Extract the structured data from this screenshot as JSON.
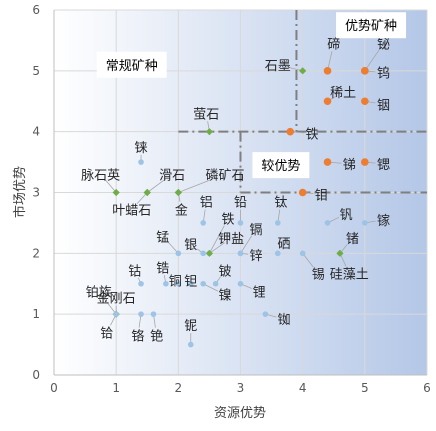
{
  "chart_data": {
    "type": "scatter",
    "xlabel": "资源优势",
    "ylabel": "市场优势",
    "xlim": [
      0,
      6
    ],
    "ylim": [
      0,
      6
    ],
    "xticks": [
      0,
      1,
      2,
      3,
      4,
      5,
      6
    ],
    "yticks": [
      0,
      1,
      2,
      3,
      4,
      5,
      6
    ],
    "colors": {
      "blue": "#9dc3e6",
      "orange": "#ed7d31",
      "green": "#70ad47",
      "gradient_light": "#ffffff",
      "gradient_dark": "#b4c7e7",
      "dash": "#7f7f7f"
    },
    "regions": [
      {
        "label": "优势矿种",
        "x": 5.1,
        "y": 5.75
      },
      {
        "label": "常规矿种",
        "x": 1.25,
        "y": 5.1
      },
      {
        "label": "较优势",
        "x": 3.65,
        "y": 3.45
      }
    ],
    "divider_lines": [
      {
        "points": [
          [
            3.9,
            6
          ],
          [
            3.9,
            4
          ]
        ]
      },
      {
        "points": [
          [
            2.0,
            4
          ],
          [
            3.9,
            4
          ]
        ]
      },
      {
        "points": [
          [
            3.0,
            4
          ],
          [
            3.0,
            3
          ]
        ]
      },
      {
        "points": [
          [
            3.0,
            3
          ],
          [
            6,
            3
          ]
        ]
      },
      {
        "points": [
          [
            3.9,
            4
          ],
          [
            6,
            4
          ]
        ]
      }
    ],
    "points": [
      {
        "label": "铋",
        "x": 5.0,
        "y": 5.0,
        "color": "orange",
        "lx": 5.3,
        "ly": 5.45
      },
      {
        "label": "碲",
        "x": 4.4,
        "y": 5.0,
        "color": "orange",
        "lx": 4.5,
        "ly": 5.45
      },
      {
        "label": "钨",
        "x": 5.0,
        "y": 5.0,
        "color": "orange",
        "lx": 5.3,
        "ly": 4.97
      },
      {
        "label": "石墨",
        "x": 4.0,
        "y": 5.0,
        "color": "green",
        "lx": 3.6,
        "ly": 5.1
      },
      {
        "label": "稀土",
        "x": 4.4,
        "y": 4.5,
        "color": "orange",
        "lx": 4.65,
        "ly": 4.65
      },
      {
        "label": "铟",
        "x": 5.0,
        "y": 4.5,
        "color": "orange",
        "lx": 5.3,
        "ly": 4.45
      },
      {
        "label": "铁",
        "x": 3.8,
        "y": 4.0,
        "color": "orange",
        "lx": 4.15,
        "ly": 3.97
      },
      {
        "label": "萤石",
        "x": 2.5,
        "y": 4.0,
        "color": "green",
        "lx": 2.45,
        "ly": 4.3
      },
      {
        "label": "锑",
        "x": 4.4,
        "y": 3.5,
        "color": "orange",
        "lx": 4.75,
        "ly": 3.47
      },
      {
        "label": "锶",
        "x": 5.0,
        "y": 3.5,
        "color": "orange",
        "lx": 5.3,
        "ly": 3.47
      },
      {
        "label": "钼",
        "x": 4.0,
        "y": 3.0,
        "color": "orange",
        "lx": 4.3,
        "ly": 2.97
      },
      {
        "label": "铼",
        "x": 1.4,
        "y": 3.5,
        "color": "blue",
        "lx": 1.4,
        "ly": 3.75
      },
      {
        "label": "脉石英",
        "x": 1.0,
        "y": 3.0,
        "color": "green",
        "lx": 0.75,
        "ly": 3.3
      },
      {
        "label": "滑石",
        "x": 1.5,
        "y": 3.0,
        "color": "green",
        "lx": 1.9,
        "ly": 3.3
      },
      {
        "label": "磷矿石",
        "x": 2.0,
        "y": 3.0,
        "color": "green",
        "lx": 2.75,
        "ly": 3.3
      },
      {
        "label": "叶蜡石",
        "x": 1.5,
        "y": 3.0,
        "color": "green",
        "lx": 1.25,
        "ly": 2.72
      },
      {
        "label": "金",
        "x": 2.0,
        "y": 3.0,
        "color": "green",
        "lx": 2.05,
        "ly": 2.72
      },
      {
        "label": "铝",
        "x": 2.4,
        "y": 2.5,
        "color": "blue",
        "lx": 2.45,
        "ly": 2.85
      },
      {
        "label": "铅",
        "x": 3.0,
        "y": 2.5,
        "color": "blue",
        "lx": 3.0,
        "ly": 2.85
      },
      {
        "label": "钛",
        "x": 3.6,
        "y": 2.5,
        "color": "blue",
        "lx": 3.65,
        "ly": 2.85
      },
      {
        "label": "铁",
        "x": 2.5,
        "y": 2.0,
        "color": "blue",
        "lx": 2.8,
        "ly": 2.57
      },
      {
        "label": "镉",
        "x": 3.0,
        "y": 2.0,
        "color": "blue",
        "lx": 3.25,
        "ly": 2.4
      },
      {
        "label": "钾盐",
        "x": 2.5,
        "y": 2.0,
        "color": "green",
        "lx": 2.85,
        "ly": 2.25
      },
      {
        "label": "钒",
        "x": 4.4,
        "y": 2.5,
        "color": "blue",
        "lx": 4.7,
        "ly": 2.65
      },
      {
        "label": "镓",
        "x": 5.0,
        "y": 2.5,
        "color": "blue",
        "lx": 5.3,
        "ly": 2.55
      },
      {
        "label": "硒",
        "x": 3.6,
        "y": 2.0,
        "color": "blue",
        "lx": 3.7,
        "ly": 2.17
      },
      {
        "label": "锗",
        "x": 4.6,
        "y": 2.0,
        "color": "blue",
        "lx": 4.8,
        "ly": 2.25
      },
      {
        "label": "锰",
        "x": 2.0,
        "y": 2.0,
        "color": "blue",
        "lx": 1.75,
        "ly": 2.28
      },
      {
        "label": "银",
        "x": 2.4,
        "y": 2.0,
        "color": "blue",
        "lx": 2.2,
        "ly": 2.15
      },
      {
        "label": "锌",
        "x": 3.0,
        "y": 2.0,
        "color": "blue",
        "lx": 3.25,
        "ly": 1.97
      },
      {
        "label": "锡",
        "x": 4.0,
        "y": 2.0,
        "color": "blue",
        "lx": 4.25,
        "ly": 1.67
      },
      {
        "label": "硅藻土",
        "x": 4.6,
        "y": 2.0,
        "color": "green",
        "lx": 4.75,
        "ly": 1.67
      },
      {
        "label": "钴",
        "x": 1.4,
        "y": 1.5,
        "color": "blue",
        "lx": 1.3,
        "ly": 1.72
      },
      {
        "label": "锆",
        "x": 1.8,
        "y": 1.5,
        "color": "blue",
        "lx": 1.75,
        "ly": 1.77
      },
      {
        "label": "铜",
        "x": 2.0,
        "y": 1.5,
        "color": "blue",
        "lx": 1.95,
        "ly": 1.55
      },
      {
        "label": "钽",
        "x": 2.2,
        "y": 1.5,
        "color": "blue",
        "lx": 2.2,
        "ly": 1.55
      },
      {
        "label": "铍",
        "x": 2.6,
        "y": 1.5,
        "color": "blue",
        "lx": 2.75,
        "ly": 1.72
      },
      {
        "label": "镍",
        "x": 2.4,
        "y": 1.5,
        "color": "blue",
        "lx": 2.75,
        "ly": 1.32
      },
      {
        "label": "锂",
        "x": 3.0,
        "y": 1.5,
        "color": "blue",
        "lx": 3.3,
        "ly": 1.37
      },
      {
        "label": "铂族",
        "x": 1.0,
        "y": 1.0,
        "color": "blue",
        "lx": 0.72,
        "ly": 1.37
      },
      {
        "label": "金刚石",
        "x": 1.0,
        "y": 1.0,
        "color": "green",
        "lx": 1.0,
        "ly": 1.27
      },
      {
        "label": "铪",
        "x": 1.0,
        "y": 1.0,
        "color": "blue",
        "lx": 0.85,
        "ly": 0.7
      },
      {
        "label": "铬",
        "x": 1.4,
        "y": 1.0,
        "color": "blue",
        "lx": 1.35,
        "ly": 0.65
      },
      {
        "label": "铯",
        "x": 1.6,
        "y": 1.0,
        "color": "blue",
        "lx": 1.65,
        "ly": 0.65
      },
      {
        "label": "铌",
        "x": 2.2,
        "y": 0.5,
        "color": "blue",
        "lx": 2.2,
        "ly": 0.82
      },
      {
        "label": "铷",
        "x": 3.4,
        "y": 1.0,
        "color": "blue",
        "lx": 3.7,
        "ly": 0.92
      }
    ]
  }
}
